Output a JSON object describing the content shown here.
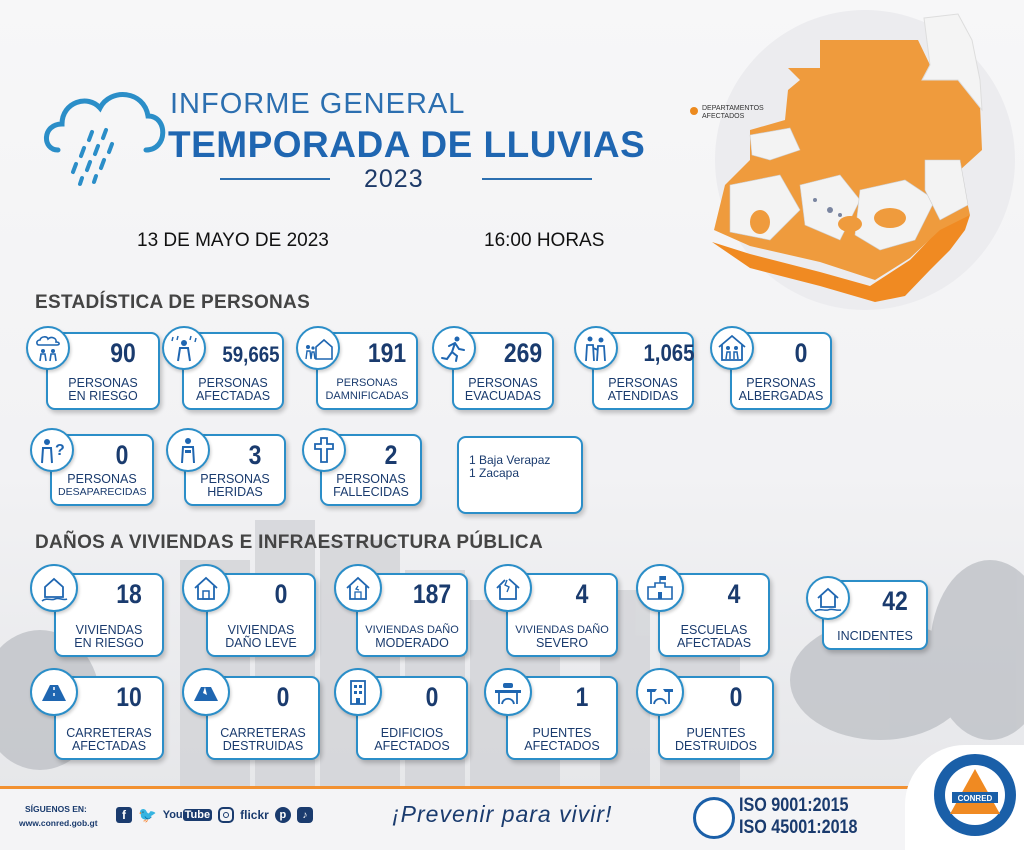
{
  "header": {
    "title_line1": "INFORME GENERAL",
    "title_line2": "TEMPORADA DE LLUVIAS",
    "year": "2023",
    "date": "13 DE MAYO DE 2023",
    "time": "16:00 HORAS"
  },
  "map": {
    "legend": "DEPARTAMENTOS AFECTADOS",
    "affected_color": "#ec8a1e"
  },
  "people_section": {
    "title": "ESTADÍSTICA DE PERSONAS",
    "stats": [
      {
        "icon": "rain-people-icon",
        "value": "90",
        "label1": "PERSONAS",
        "label2": "EN RIESGO"
      },
      {
        "icon": "rain-person-icon",
        "value": "59,665",
        "label1": "PERSONAS",
        "label2": "AFECTADAS"
      },
      {
        "icon": "family-house-icon",
        "value": "191",
        "label1": "PERSONAS",
        "label2": "DAMNIFICADAS"
      },
      {
        "icon": "running-person-icon",
        "value": "269",
        "label1": "PERSONAS",
        "label2": "EVACUADAS"
      },
      {
        "icon": "helper-person-icon",
        "value": "1,065",
        "label1": "PERSONAS",
        "label2": "ATENDIDAS"
      },
      {
        "icon": "shelter-icon",
        "value": "0",
        "label1": "PERSONAS",
        "label2": "ALBERGADAS"
      },
      {
        "icon": "missing-person-icon",
        "value": "0",
        "label1": "PERSONAS",
        "label2": "DESAPARECIDAS"
      },
      {
        "icon": "injured-person-icon",
        "value": "3",
        "label1": "PERSONAS",
        "label2": "HERIDAS"
      },
      {
        "icon": "cross-icon",
        "value": "2",
        "label1": "PERSONAS",
        "label2": "FALLECIDAS"
      }
    ],
    "deaths_note": [
      "1 Baja Verapaz",
      "1 Zacapa"
    ]
  },
  "infra_section": {
    "title": "DAÑOS A VIVIENDAS E INFRAESTRUCTURA PÚBLICA",
    "stats": [
      {
        "icon": "house-risk-icon",
        "value": "18",
        "label1": "VIVIENDAS",
        "label2": "EN RIESGO"
      },
      {
        "icon": "house-icon",
        "value": "0",
        "label1": "VIVIENDAS",
        "label2": "DAÑO LEVE"
      },
      {
        "icon": "house-damage-icon",
        "value": "187",
        "label1": "VIVIENDAS DAÑO",
        "label2": "MODERADO"
      },
      {
        "icon": "house-severe-icon",
        "value": "4",
        "label1": "VIVIENDAS DAÑO",
        "label2": "SEVERO"
      },
      {
        "icon": "school-icon",
        "value": "4",
        "label1": "ESCUELAS",
        "label2": "AFECTADAS"
      },
      {
        "icon": "incident-house-icon",
        "value": "42",
        "label1": "",
        "label2": "INCIDENTES"
      },
      {
        "icon": "road-icon",
        "value": "10",
        "label1": "CARRETERAS",
        "label2": "AFECTADAS"
      },
      {
        "icon": "road-destroyed-icon",
        "value": "0",
        "label1": "CARRETERAS",
        "label2": "DESTRUIDAS"
      },
      {
        "icon": "building-icon",
        "value": "0",
        "label1": "EDIFICIOS",
        "label2": "AFECTADOS"
      },
      {
        "icon": "bridge-icon",
        "value": "1",
        "label1": "PUENTES",
        "label2": "AFECTADOS"
      },
      {
        "icon": "bridge-destroyed-icon",
        "value": "0",
        "label1": "PUENTES",
        "label2": "DESTRUIDOS"
      }
    ]
  },
  "footer": {
    "follow_label": "SÍGUENOS EN:",
    "website": "www.conred.gob.gt",
    "social": [
      "f",
      "t",
      "YouTube",
      "instagram",
      "flickr",
      "pinterest",
      "tiktok"
    ],
    "slogan": "¡Prevenir para vivir!",
    "iso1": "ISO  9001:2015",
    "iso2": "ISO 45001:2018",
    "logo_text": "CONRED"
  }
}
